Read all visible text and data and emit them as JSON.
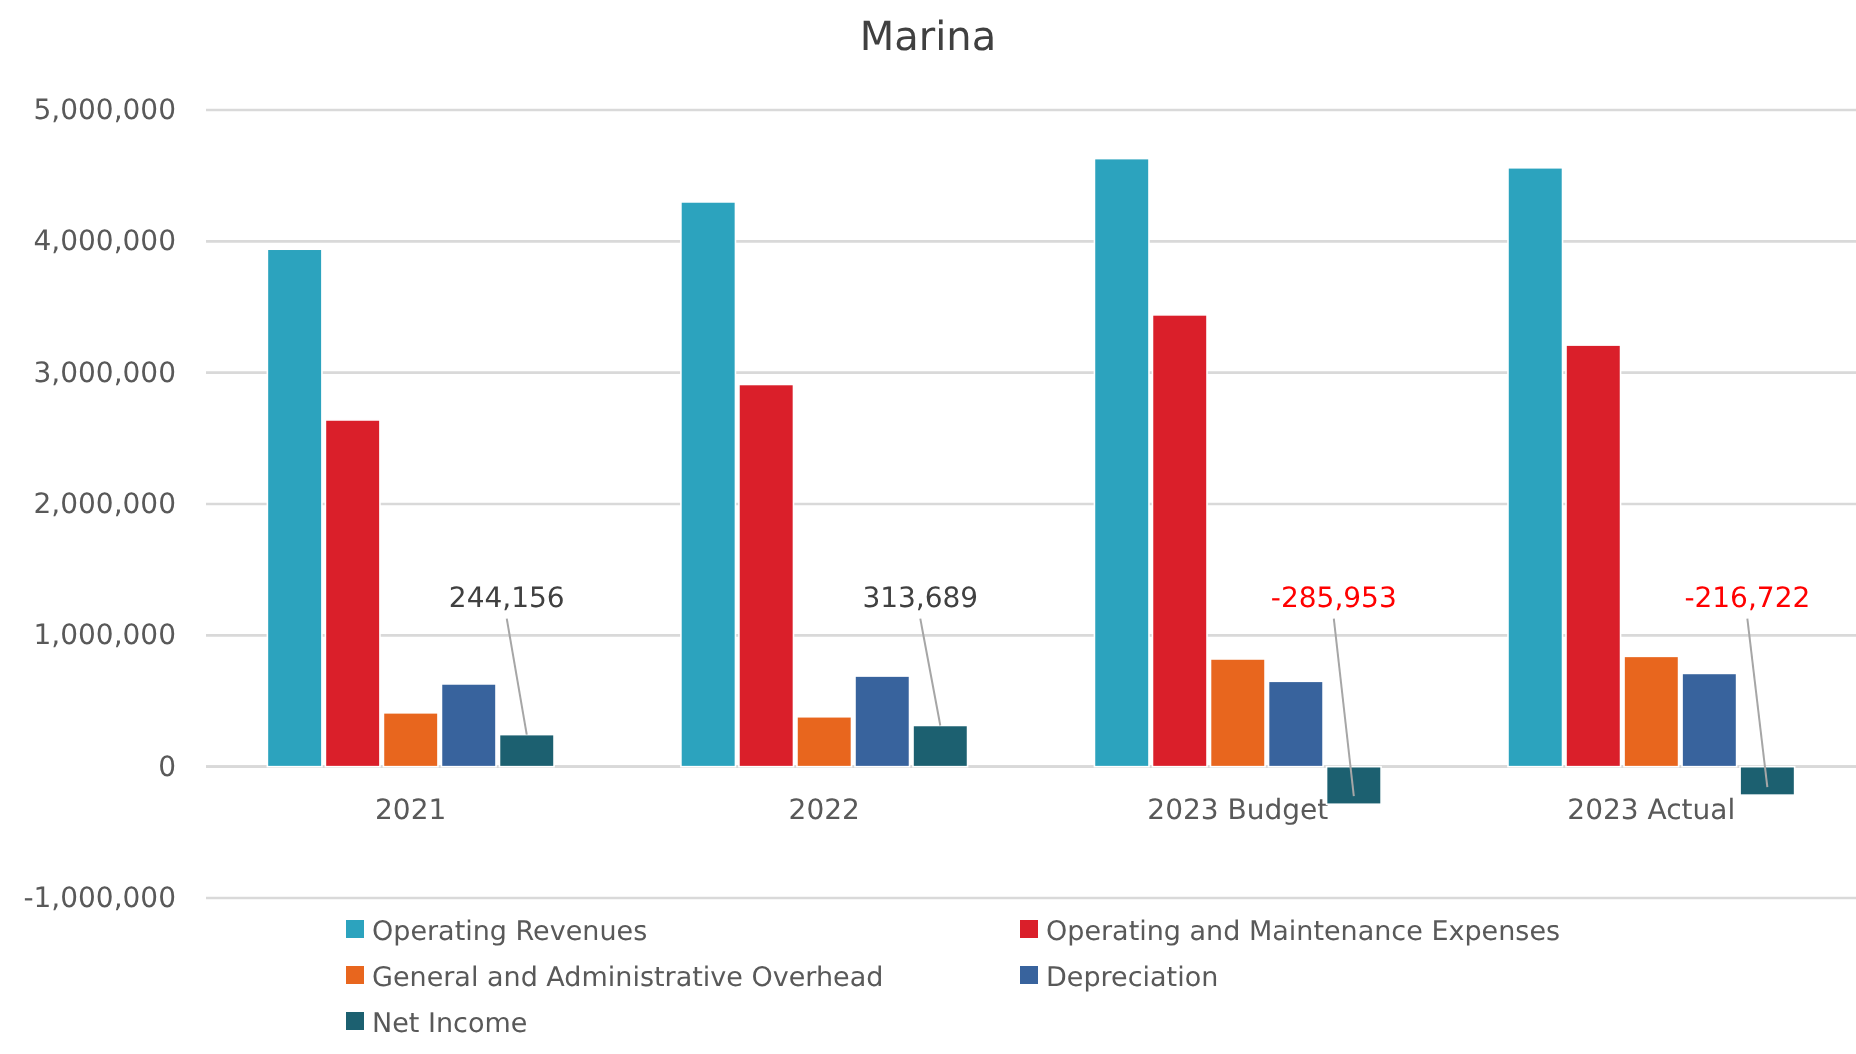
{
  "chart_data": {
    "type": "bar",
    "title": "Marina",
    "categories": [
      "2021",
      "2022",
      "2023 Budget",
      "2023 Actual"
    ],
    "series": [
      {
        "name": "Operating Revenues",
        "color": "#2ca3be",
        "values": [
          3940000,
          4300000,
          4630000,
          4560000
        ]
      },
      {
        "name": "Operating and Maintenance Expenses",
        "color": "#da1f2a",
        "values": [
          2640000,
          2910000,
          3440000,
          3210000
        ]
      },
      {
        "name": "General and Administrative Overhead",
        "color": "#e8661e",
        "values": [
          410000,
          380000,
          820000,
          840000
        ]
      },
      {
        "name": "Depreciation",
        "color": "#38639d",
        "values": [
          630000,
          690000,
          650000,
          710000
        ]
      },
      {
        "name": "Net Income",
        "color": "#1c6070",
        "values": [
          244156,
          313689,
          -285953,
          -216722
        ],
        "value_labels": [
          "244,156",
          "313,689",
          "-285,953",
          "-216,722"
        ]
      }
    ],
    "ylim": [
      -1000000,
      5000000
    ],
    "yticks": [
      {
        "value": -1000000,
        "label": "-1,000,000"
      },
      {
        "value": 0,
        "label": "0"
      },
      {
        "value": 1000000,
        "label": "1,000,000"
      },
      {
        "value": 2000000,
        "label": "2,000,000"
      },
      {
        "value": 3000000,
        "label": "3,000,000"
      },
      {
        "value": 4000000,
        "label": "4,000,000"
      },
      {
        "value": 5000000,
        "label": "5,000,000"
      }
    ],
    "grid": "y",
    "legend": "bottom"
  }
}
